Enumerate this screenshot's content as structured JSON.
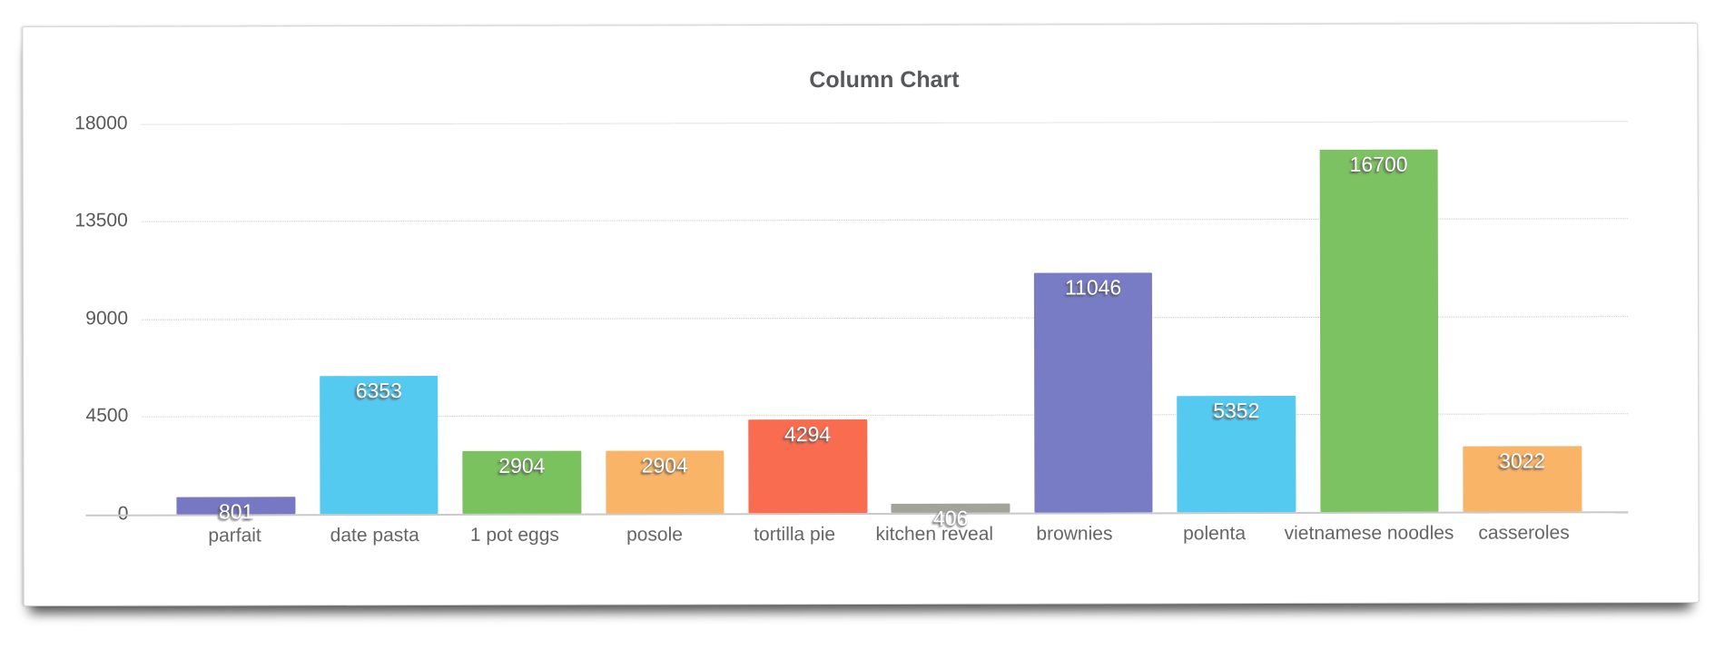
{
  "chart_data": {
    "type": "bar",
    "title": "Column Chart",
    "categories": [
      "parfait",
      "date pasta",
      "1 pot eggs",
      "posole",
      "tortilla pie",
      "kitchen reveal",
      "brownies",
      "polenta",
      "vietnamese noodles",
      "casseroles"
    ],
    "values": [
      801,
      6353,
      2904,
      2904,
      4294,
      406,
      11046,
      5352,
      16700,
      3022
    ],
    "bar_colors": [
      "#7678C4",
      "#55CAF0",
      "#79C25D",
      "#FAB468",
      "#F96C50",
      "#A3A29B",
      "#787CC5",
      "#55CAF0",
      "#7DC262",
      "#FAB468"
    ],
    "value_label_color": "#ffffff",
    "yticks": [
      0,
      4500,
      9000,
      13500,
      18000
    ],
    "ylim": [
      0,
      18000
    ],
    "xlabel": "",
    "ylabel": "",
    "grid": "horizontal-dotted",
    "legend": "none",
    "value_labels_position": "inside-top"
  }
}
